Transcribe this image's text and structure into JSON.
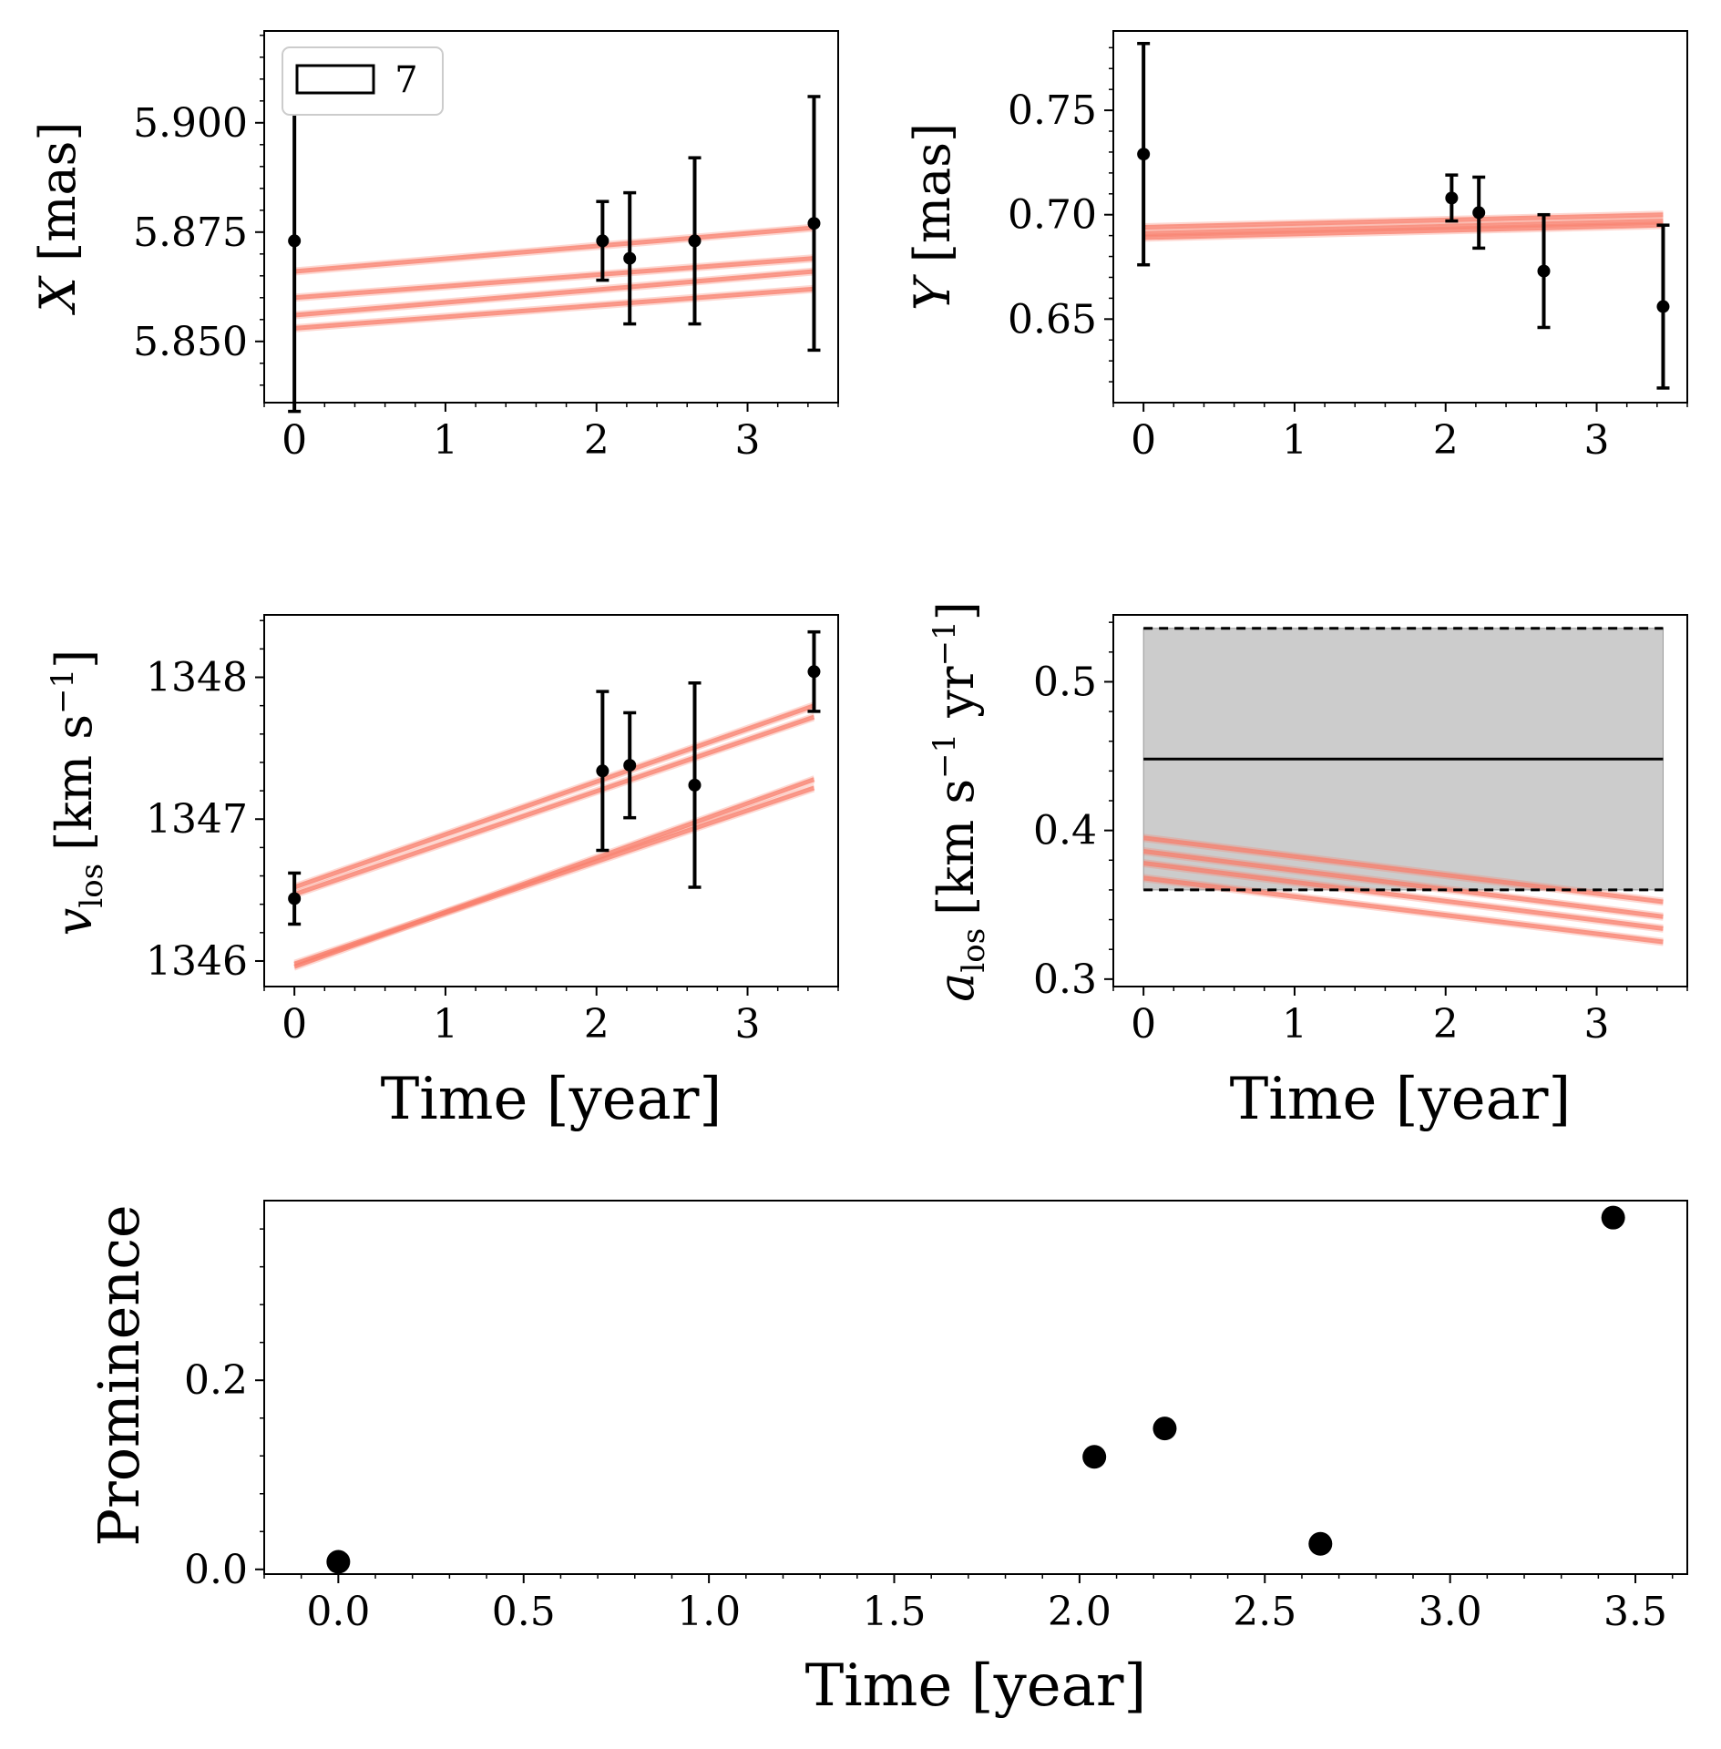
{
  "colors": {
    "model_line": "#f87d6b",
    "points": "#000000",
    "band_fill": "#cccccc",
    "axes": "#000000"
  },
  "chart_data": [
    {
      "id": "x",
      "type": "scatter",
      "xlabel": "",
      "ylabel_main": "X",
      "ylabel_unit": "[mas]",
      "xlim": [
        -0.2,
        3.6
      ],
      "ylim": [
        5.836,
        5.921
      ],
      "xticks": [
        0,
        1,
        2,
        3
      ],
      "xtick_labels": [
        "0",
        "1",
        "2",
        "3"
      ],
      "yticks": [
        5.85,
        5.875,
        5.9
      ],
      "ytick_labels": [
        "5.850",
        "5.875",
        "5.900"
      ],
      "legend": {
        "label": "7",
        "location": "upper-left"
      },
      "series": [
        {
          "name": "data",
          "x": [
            0.0,
            2.04,
            2.22,
            2.65,
            3.44
          ],
          "y": [
            5.873,
            5.873,
            5.869,
            5.873,
            5.877
          ],
          "yerr": [
            0.039,
            0.009,
            0.015,
            0.019,
            0.029
          ]
        }
      ],
      "model_lines": [
        {
          "x": [
            0.0,
            3.44
          ],
          "y": [
            5.866,
            5.876
          ]
        },
        {
          "x": [
            0.0,
            3.44
          ],
          "y": [
            5.86,
            5.869
          ]
        },
        {
          "x": [
            0.0,
            3.44
          ],
          "y": [
            5.856,
            5.866
          ]
        },
        {
          "x": [
            0.0,
            3.44
          ],
          "y": [
            5.853,
            5.862
          ]
        }
      ]
    },
    {
      "id": "y",
      "type": "scatter",
      "xlabel": "",
      "ylabel_main": "Y",
      "ylabel_unit": "[mas]",
      "xlim": [
        -0.2,
        3.6
      ],
      "ylim": [
        0.61,
        0.788
      ],
      "xticks": [
        0,
        1,
        2,
        3
      ],
      "xtick_labels": [
        "0",
        "1",
        "2",
        "3"
      ],
      "yticks": [
        0.65,
        0.7,
        0.75
      ],
      "ytick_labels": [
        "0.65",
        "0.70",
        "0.75"
      ],
      "series": [
        {
          "name": "data",
          "x": [
            0.0,
            2.04,
            2.22,
            2.65,
            3.44
          ],
          "y": [
            0.729,
            0.708,
            0.701,
            0.673,
            0.656
          ],
          "yerr": [
            0.053,
            0.011,
            0.017,
            0.027,
            0.039
          ]
        }
      ],
      "model_lines": [
        {
          "x": [
            0.0,
            3.44
          ],
          "y": [
            0.691,
            0.697
          ]
        },
        {
          "x": [
            0.0,
            3.44
          ],
          "y": [
            0.694,
            0.7
          ]
        },
        {
          "x": [
            0.0,
            3.44
          ],
          "y": [
            0.689,
            0.695
          ]
        }
      ]
    },
    {
      "id": "vlos",
      "type": "scatter",
      "xlabel": "Time [year]",
      "ylabel_main": "v",
      "ylabel_sub": "los",
      "ylabel_unit": "[km s",
      "ylabel_sup": "−1",
      "ylabel_tail": "]",
      "xlim": [
        -0.2,
        3.6
      ],
      "ylim": [
        1345.82,
        1348.44
      ],
      "xticks": [
        0,
        1,
        2,
        3
      ],
      "xtick_labels": [
        "0",
        "1",
        "2",
        "3"
      ],
      "yticks": [
        1346,
        1347,
        1348
      ],
      "ytick_labels": [
        "1346",
        "1347",
        "1348"
      ],
      "series": [
        {
          "name": "data",
          "x": [
            0.0,
            2.04,
            2.22,
            2.65,
            3.44
          ],
          "y": [
            1346.44,
            1347.34,
            1347.38,
            1347.24,
            1348.04
          ],
          "yerr": [
            0.18,
            0.56,
            0.37,
            0.72,
            0.28
          ]
        }
      ],
      "model_lines": [
        {
          "x": [
            0.0,
            3.44
          ],
          "y": [
            1346.52,
            1347.8
          ]
        },
        {
          "x": [
            0.0,
            3.44
          ],
          "y": [
            1346.47,
            1347.72
          ]
        },
        {
          "x": [
            0.0,
            3.44
          ],
          "y": [
            1345.96,
            1347.28
          ]
        },
        {
          "x": [
            0.0,
            3.44
          ],
          "y": [
            1345.98,
            1347.22
          ]
        }
      ]
    },
    {
      "id": "alos",
      "type": "line",
      "xlabel": "Time [year]",
      "ylabel_main": "a",
      "ylabel_sub": "los",
      "ylabel_unit": "[km s",
      "ylabel_sup": "−1",
      "ylabel_mid": " yr",
      "ylabel_sup2": "−1",
      "ylabel_tail": "]",
      "xlim": [
        -0.2,
        3.6
      ],
      "ylim": [
        0.295,
        0.545
      ],
      "xticks": [
        0,
        1,
        2,
        3
      ],
      "xtick_labels": [
        "0",
        "1",
        "2",
        "3"
      ],
      "yticks": [
        0.3,
        0.4,
        0.5
      ],
      "ytick_labels": [
        "0.3",
        "0.4",
        "0.5"
      ],
      "band": {
        "x": [
          0.0,
          3.44
        ],
        "lower": 0.36,
        "upper": 0.536,
        "center": 0.448
      },
      "model_lines": [
        {
          "x": [
            0.0,
            3.44
          ],
          "y": [
            0.395,
            0.352
          ]
        },
        {
          "x": [
            0.0,
            3.44
          ],
          "y": [
            0.386,
            0.342
          ]
        },
        {
          "x": [
            0.0,
            3.44
          ],
          "y": [
            0.378,
            0.334
          ]
        },
        {
          "x": [
            0.0,
            3.44
          ],
          "y": [
            0.368,
            0.325
          ]
        }
      ]
    },
    {
      "id": "prominence",
      "type": "scatter",
      "xlabel": "Time [year]",
      "ylabel_main": "Prominence",
      "xlim": [
        -0.2,
        3.64
      ],
      "ylim": [
        -0.005,
        0.39
      ],
      "xticks": [
        0.0,
        0.5,
        1.0,
        1.5,
        2.0,
        2.5,
        3.0,
        3.5
      ],
      "xtick_labels": [
        "0.0",
        "0.5",
        "1.0",
        "1.5",
        "2.0",
        "2.5",
        "3.0",
        "3.5"
      ],
      "yticks": [
        0.0,
        0.2
      ],
      "ytick_labels": [
        "0.0",
        "0.2"
      ],
      "series": [
        {
          "name": "prominence",
          "x": [
            0.0,
            2.04,
            2.23,
            2.65,
            3.44
          ],
          "y": [
            0.008,
            0.119,
            0.149,
            0.027,
            0.372
          ]
        }
      ]
    }
  ]
}
